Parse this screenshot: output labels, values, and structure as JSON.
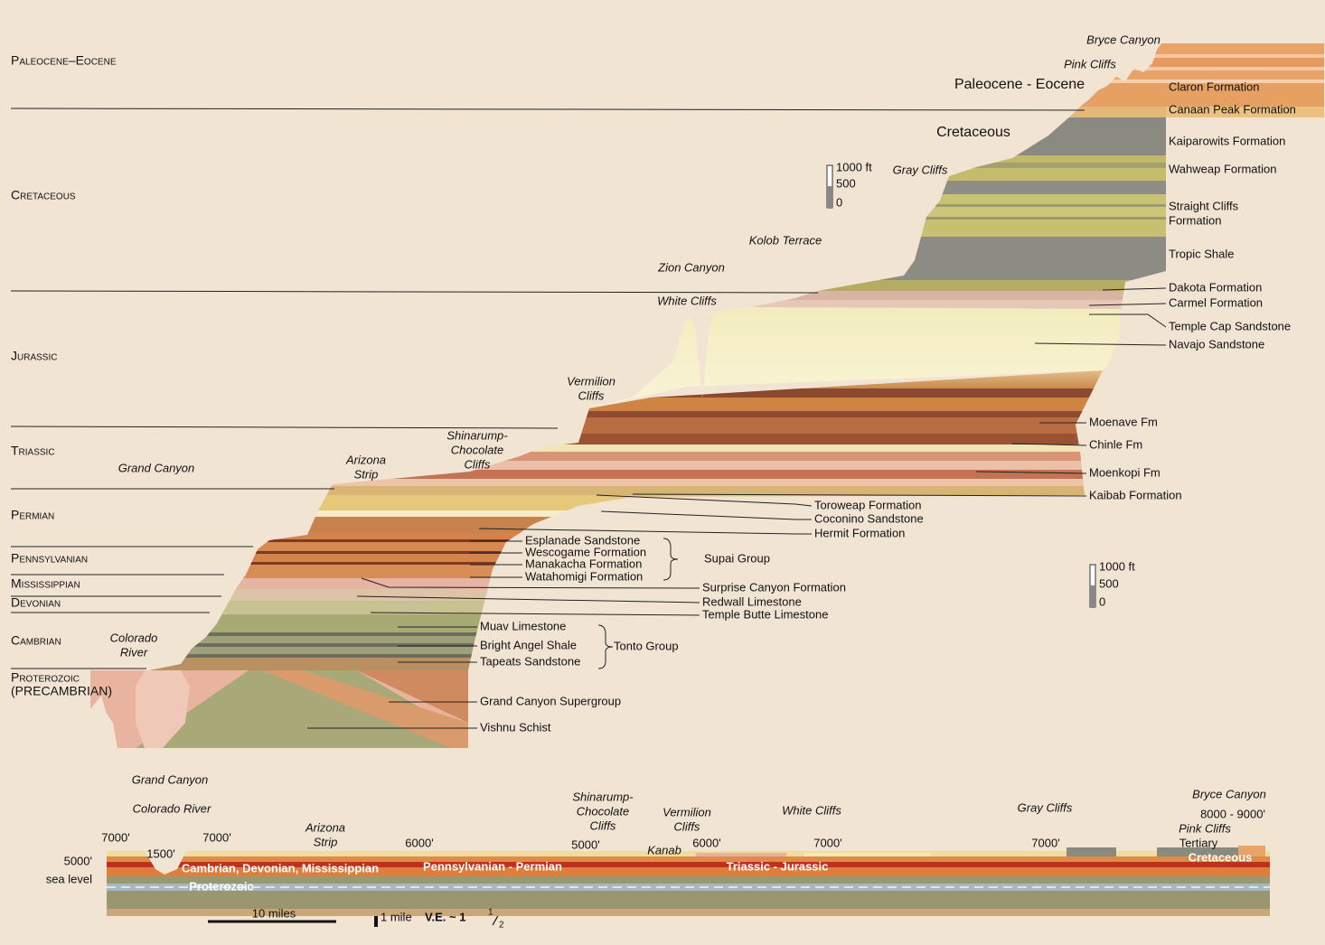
{
  "section": {
    "periods": [
      "Paleocene–Eocene",
      "Cretaceous",
      "Jurassic",
      "Triassic",
      "Permian",
      "Pennsylvanian",
      "Mississippian",
      "Devonian",
      "Cambrian",
      "Proterozoic",
      "(PRECAMBRIAN)"
    ],
    "places": [
      [
        "Bryce Canyon"
      ],
      [
        "Pink Cliffs"
      ],
      [
        "Gray Cliffs"
      ],
      [
        "Kolob Terrace"
      ],
      [
        "Zion Canyon"
      ],
      [
        "White Cliffs"
      ],
      [
        "Vermilion",
        "Cliffs"
      ],
      [
        "Shinarump-",
        "Chocolate",
        "Cliffs"
      ],
      [
        "Arizona",
        "Strip"
      ],
      [
        "Grand Canyon"
      ],
      [
        "Colorado",
        "River"
      ]
    ],
    "eras": [
      "Paleocene - Eocene",
      "Cretaceous"
    ],
    "formations": [
      [
        "Claron Formation"
      ],
      [
        "Canaan Peak Formation"
      ],
      [
        "Kaiparowits Formation"
      ],
      [
        "Wahweap Formation"
      ],
      [
        "Straight Cliffs",
        "Formation"
      ],
      [
        "Tropic Shale"
      ],
      [
        "Dakota Formation"
      ],
      [
        "Carmel Formation"
      ],
      [
        "Temple Cap Sandstone"
      ],
      [
        "Navajo Sandstone"
      ],
      [
        "Moenave Fm"
      ],
      [
        "Chinle Fm"
      ],
      [
        "Moenkopi Fm"
      ],
      [
        "Kaibab Formation"
      ],
      [
        "Toroweap Formation"
      ],
      [
        "Coconino Sandstone"
      ],
      [
        "Hermit Formation"
      ],
      [
        "Esplanade Sandstone"
      ],
      [
        "Wescogame Formation"
      ],
      [
        "Manakacha Formation"
      ],
      [
        "Watahomigi Formation"
      ],
      [
        "Surprise Canyon Formation"
      ],
      [
        "Redwall Limestone"
      ],
      [
        "Temple Butte Limestone"
      ],
      [
        "Muav Limestone"
      ],
      [
        "Bright Angel Shale"
      ],
      [
        "Tapeats Sandstone"
      ],
      [
        "Grand Canyon Supergroup"
      ],
      [
        "Vishnu Schist"
      ]
    ],
    "groups": [
      "Supai Group",
      "Tonto Group"
    ],
    "scales": [
      [
        "1000 ft",
        "500",
        "0"
      ],
      [
        "1000 ft",
        "500",
        "0"
      ]
    ]
  },
  "profile": {
    "places": [
      [
        "Grand Canyon"
      ],
      [
        "Colorado River"
      ],
      [
        "Arizona",
        "Strip"
      ],
      [
        "Shinarump-",
        "Chocolate",
        "Cliffs"
      ],
      [
        "Vermilion",
        "Cliffs"
      ],
      [
        "White Cliffs"
      ],
      [
        "Gray Cliffs"
      ],
      [
        "Bryce Canyon"
      ],
      [
        "Pink Cliffs"
      ],
      [
        "Kanab"
      ]
    ],
    "elevations": [
      "7000'",
      "1500'",
      "7000'",
      "6000'",
      "5000'",
      "6000'",
      "7000'",
      "7000'",
      "8000 - 9000'"
    ],
    "axis": [
      "5000'",
      "sea level"
    ],
    "units": [
      "Cambrian, Devonian, Mississippian",
      "Pennsylvanian - Permian",
      "Triassic - Jurassic",
      "Proterozoic",
      "Tertiary",
      "Cretaceous"
    ],
    "scale": {
      "distance": "10 miles",
      "height": "1 mile",
      "ve": "V.E. ~ 1",
      "ve_num": "1",
      "ve_den": "2"
    }
  }
}
